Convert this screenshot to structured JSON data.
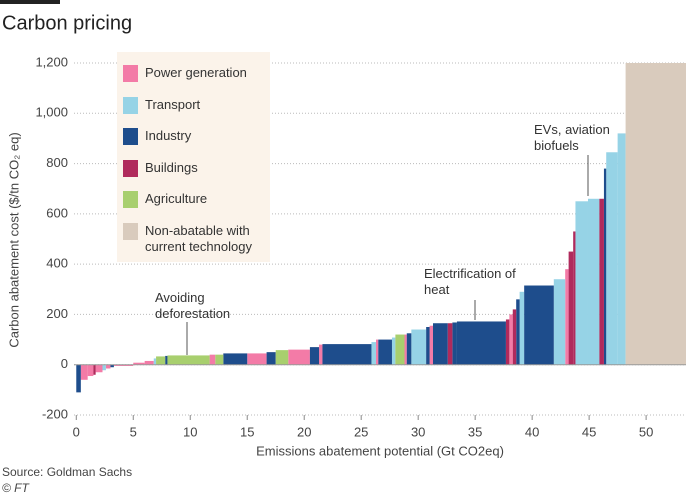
{
  "title": "Carbon pricing",
  "source": "Source: Goldman Sachs",
  "credit": "© FT",
  "chart_data": {
    "type": "mac-curve",
    "x_label": "Emissions abatement potential (Gt CO2eq)",
    "y_label": "Carbon abatement cost ($/tn CO₂ eq)",
    "xlim": [
      -0.2,
      53.5
    ],
    "xticks": [
      0,
      5,
      10,
      15,
      20,
      25,
      30,
      35,
      40,
      45,
      50
    ],
    "ylim": [
      -200,
      1200
    ],
    "yticks": [
      -200,
      0,
      200,
      400,
      600,
      800,
      {
        "value": 1000,
        "label": "1,000"
      },
      {
        "value": 1200,
        "label": "1,200"
      }
    ],
    "grid": true,
    "annotations": [
      "Avoiding deforestation",
      "Electrification of heat",
      "EVs, aviation biofuels"
    ],
    "series": [
      {
        "name": "Power generation",
        "color": "#f37ba7",
        "x0": [
          0.4,
          1.0,
          1.7,
          2.6,
          3.3,
          5.0,
          6.0,
          11.7,
          15.0,
          18.6,
          21.3,
          26.3,
          28.8,
          31.0,
          38.0,
          42.9
        ],
        "x1": [
          1.0,
          1.5,
          2.3,
          3.0,
          5.0,
          6.0,
          6.8,
          12.2,
          16.7,
          20.5,
          21.6,
          26.5,
          29.0,
          31.3,
          38.3,
          43.2
        ],
        "values": [
          -60,
          -45,
          -30,
          -15,
          -5,
          8,
          15,
          40,
          45,
          60,
          80,
          100,
          120,
          155,
          200,
          380
        ]
      },
      {
        "name": "Transport",
        "color": "#96d3e6",
        "x0": [
          2.3,
          6.8,
          25.9,
          27.7,
          29.4,
          38.9,
          41.9,
          43.8,
          44.9,
          46.5,
          47.5
        ],
        "x1": [
          2.6,
          7.0,
          26.3,
          28.0,
          30.7,
          39.3,
          42.9,
          44.9,
          45.9,
          47.5,
          48.2
        ],
        "values": [
          -22,
          25,
          90,
          108,
          140,
          290,
          340,
          650,
          660,
          845,
          920
        ]
      },
      {
        "name": "Industry",
        "color": "#1e4d8c",
        "x0": [
          0,
          3.0,
          7.8,
          12.9,
          16.7,
          20.5,
          21.6,
          26.5,
          29.0,
          30.7,
          31.3,
          33.0,
          33.4,
          38.6,
          39.3,
          46.3
        ],
        "x1": [
          0.4,
          3.3,
          8.0,
          15.0,
          17.5,
          21.3,
          25.9,
          27.7,
          29.4,
          31.0,
          32.6,
          33.4,
          37.7,
          38.9,
          41.9,
          46.5
        ],
        "values": [
          -110,
          -10,
          35,
          45,
          50,
          70,
          82,
          100,
          125,
          150,
          165,
          168,
          172,
          260,
          315,
          780
        ]
      },
      {
        "name": "Buildings",
        "color": "#b02a5c",
        "x0": [
          1.5,
          32.6,
          37.7,
          38.3,
          43.2,
          43.6,
          45.9
        ],
        "x1": [
          1.7,
          33.0,
          38.0,
          38.6,
          43.6,
          43.8,
          46.3
        ],
        "values": [
          -40,
          165,
          180,
          220,
          450,
          530,
          660
        ]
      },
      {
        "name": "Agriculture",
        "color": "#a8cf6e",
        "x0": [
          7.0,
          8.0,
          12.2,
          17.5,
          28.0
        ],
        "x1": [
          7.8,
          11.7,
          12.9,
          18.6,
          28.8
        ],
        "values": [
          33,
          37,
          40,
          58,
          120
        ]
      },
      {
        "name": "Non-abatable with current technology",
        "color": "#d9cbbd",
        "x0": [
          48.2
        ],
        "x1": [
          53.5
        ],
        "values": [
          1200
        ]
      }
    ]
  }
}
